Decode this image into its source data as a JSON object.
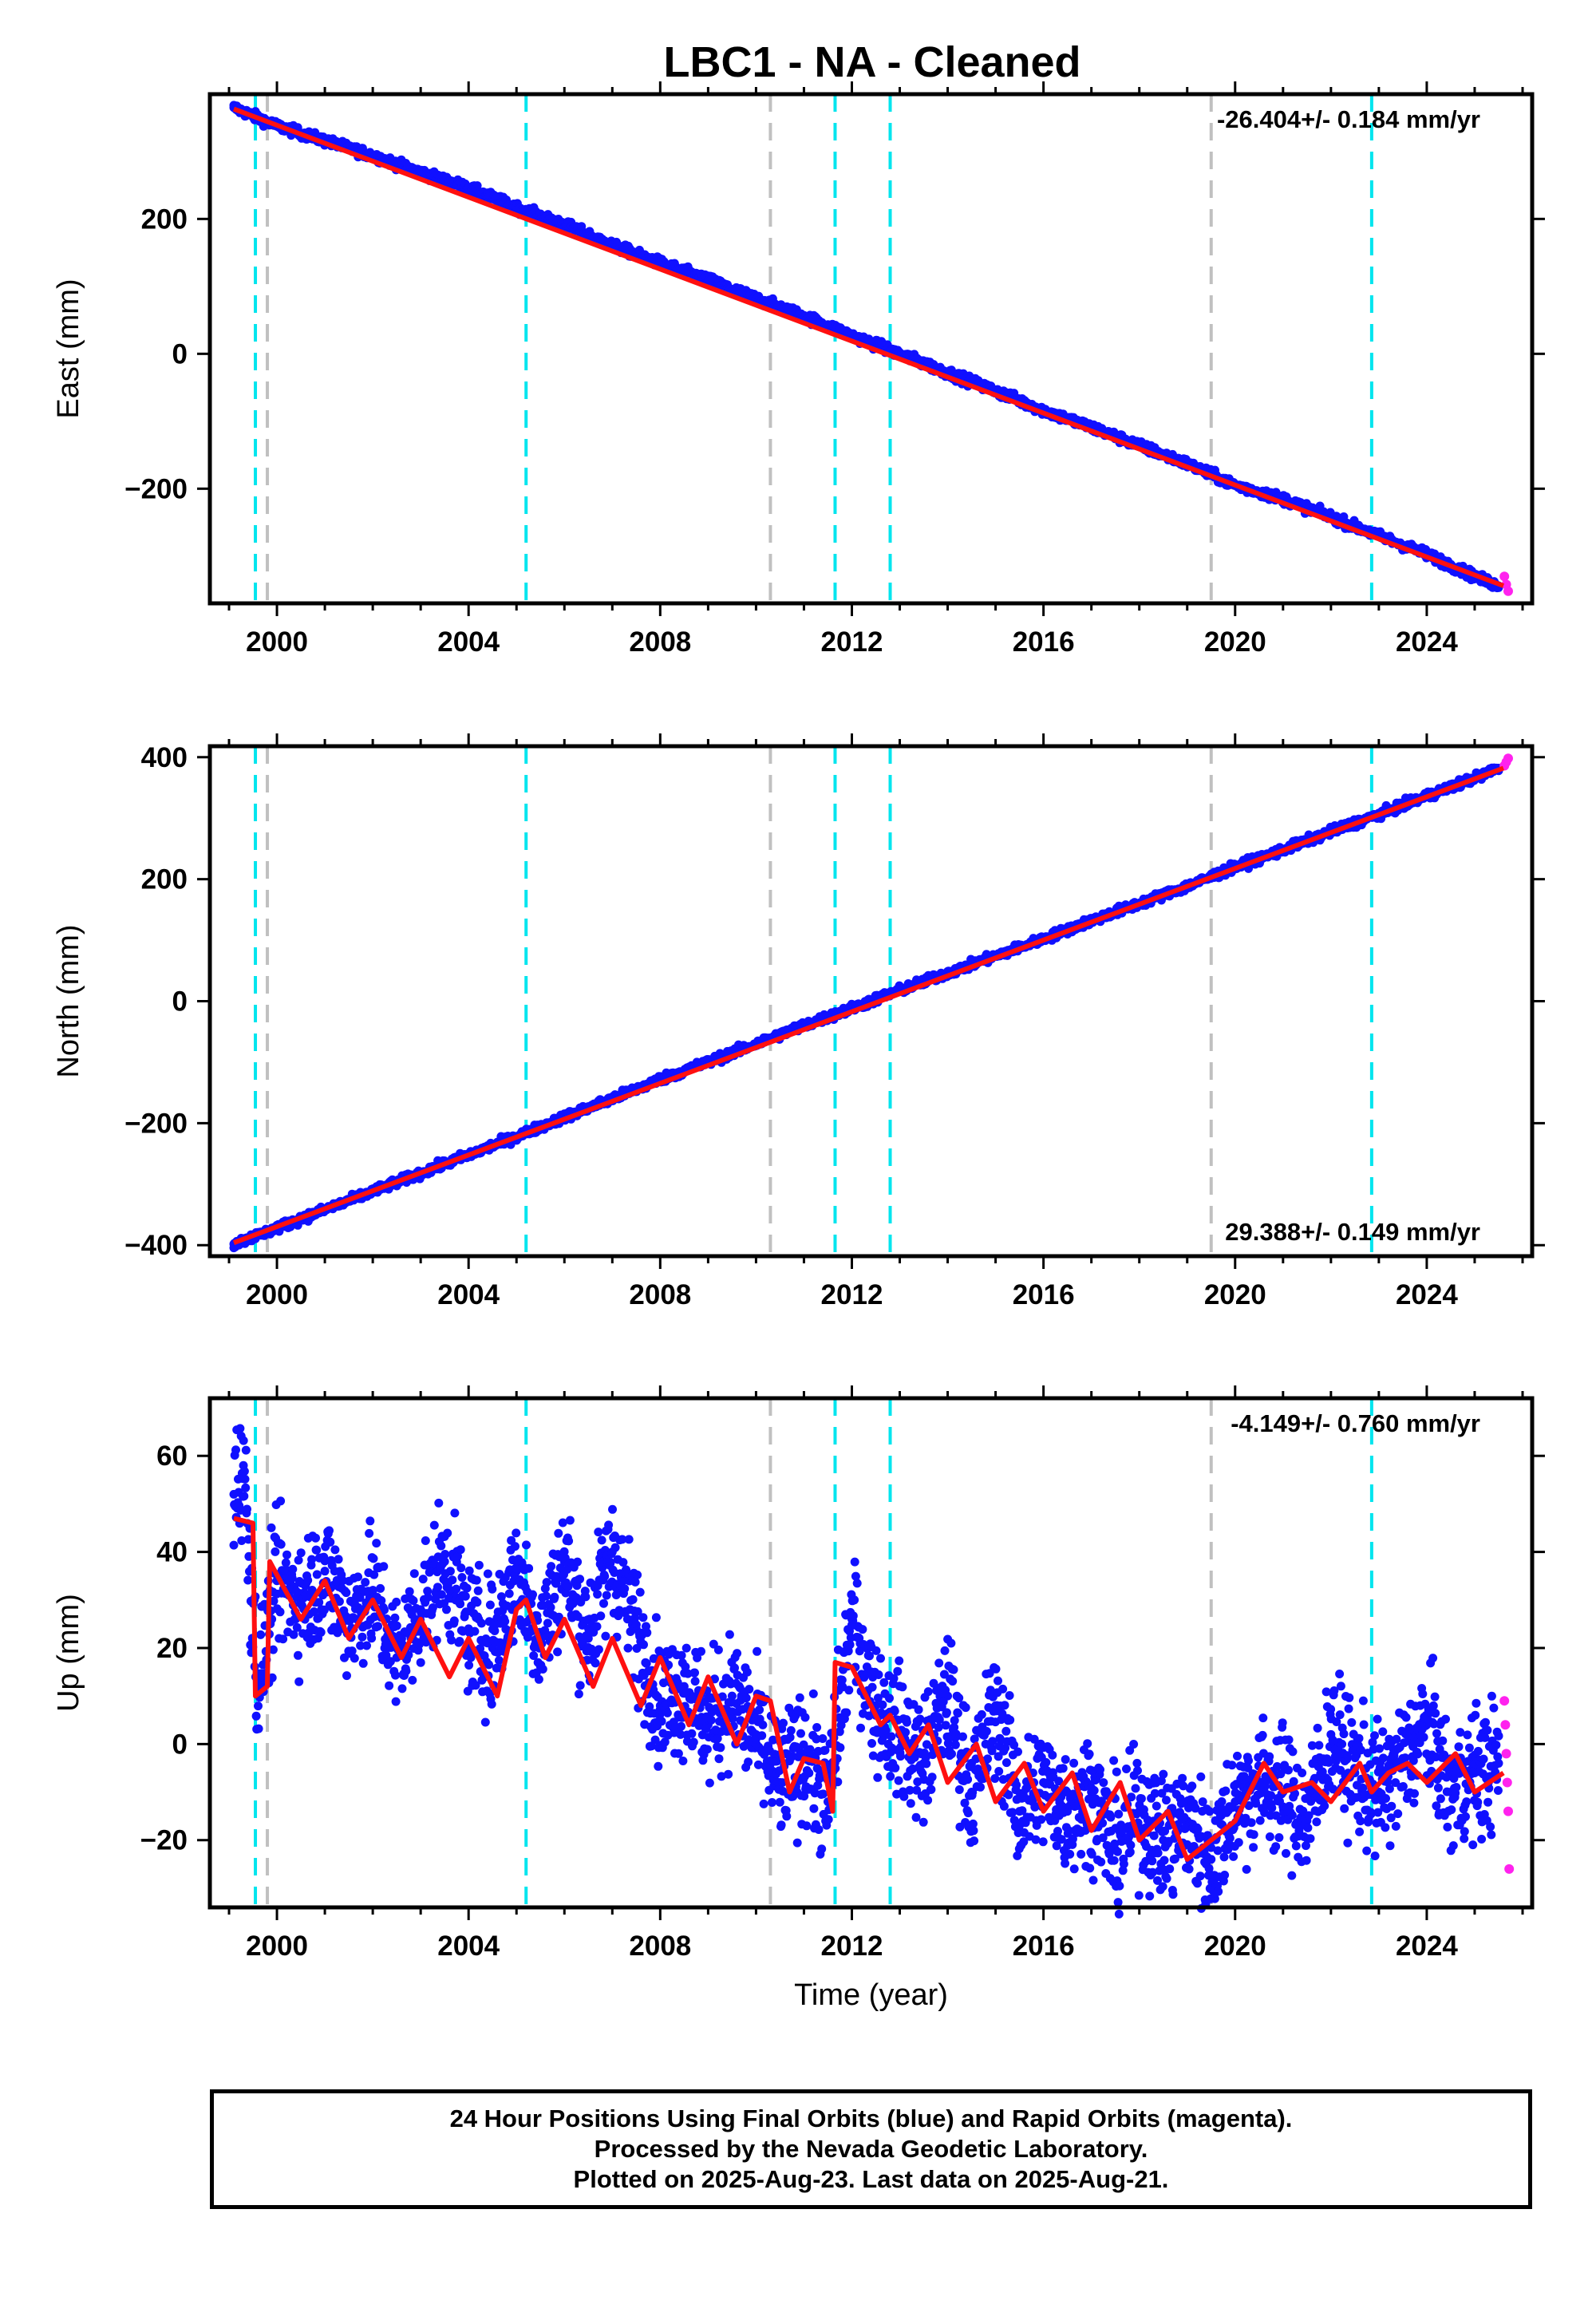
{
  "title": "LBC1  - NA - Cleaned",
  "colors": {
    "final_orbits": "#1010ff",
    "rapid_orbits": "#ff22ee",
    "model_fit": "#ff1010",
    "equipment_change": "#00e5ee",
    "offset_marker": "#c0c0c0",
    "frame": "#000000"
  },
  "chart_data": [
    {
      "type": "scatter",
      "panel": "east",
      "ylabel": "East (mm)",
      "xlabel": "",
      "xlim": [
        1998.6,
        2026.2
      ],
      "ylim": [
        -370,
        385
      ],
      "x_ticks": [
        2000,
        2004,
        2008,
        2012,
        2016,
        2020,
        2024
      ],
      "y_ticks": [
        -200,
        0,
        200
      ],
      "y_tick_labels": [
        "−200",
        "0",
        "200"
      ],
      "rate_label": "-26.404+/- 0.184 mm/yr",
      "rate_position": "top-right",
      "grid": false,
      "series": [
        {
          "name": "Final Orbits (blue)",
          "style": "points",
          "x": [
            1999.1,
            2000.0,
            2001.0,
            2002.0,
            2003.0,
            2004.0,
            2005.0,
            2006.0,
            2007.0,
            2008.0,
            2009.0,
            2010.0,
            2011.0,
            2012.0,
            2013.0,
            2014.0,
            2015.0,
            2016.0,
            2017.0,
            2018.0,
            2019.0,
            2020.0,
            2021.0,
            2022.0,
            2023.0,
            2024.0,
            2025.0,
            2025.5
          ],
          "y": [
            365,
            338,
            316,
            294,
            269,
            246,
            217,
            192,
            161,
            135,
            110,
            82,
            56,
            27,
            0,
            -28,
            -55,
            -84,
            -109,
            -136,
            -163,
            -195,
            -215,
            -242,
            -270,
            -297,
            -330,
            -344
          ]
        },
        {
          "name": "Rapid Orbits (magenta)",
          "style": "points",
          "x": [
            2025.62,
            2025.66,
            2025.7
          ],
          "y": [
            -330,
            -342,
            -352
          ]
        },
        {
          "name": "Model",
          "style": "line",
          "x": [
            1999.1,
            2025.6
          ],
          "y": [
            363,
            -344
          ]
        }
      ],
      "equipment_changes": [
        1999.55,
        2005.2,
        2011.65,
        2012.8,
        2022.85
      ],
      "other_offsets": [
        1999.8,
        2010.3,
        2019.5
      ]
    },
    {
      "type": "scatter",
      "panel": "north",
      "ylabel": "North (mm)",
      "xlabel": "",
      "xlim": [
        1998.6,
        2026.2
      ],
      "ylim": [
        -418,
        418
      ],
      "x_ticks": [
        2000,
        2004,
        2008,
        2012,
        2016,
        2020,
        2024
      ],
      "y_ticks": [
        -400,
        -200,
        0,
        200,
        400
      ],
      "y_tick_labels": [
        "−400",
        "−200",
        "0",
        "200",
        "400"
      ],
      "rate_label": "29.388+/- 0.149 mm/yr",
      "rate_position": "bottom-right",
      "grid": false,
      "series": [
        {
          "name": "Final Orbits (blue)",
          "style": "points",
          "x": [
            1999.1,
            2000.0,
            2001.0,
            2002.0,
            2003.0,
            2004.0,
            2005.0,
            2006.0,
            2007.0,
            2008.0,
            2009.0,
            2010.0,
            2011.0,
            2012.0,
            2013.0,
            2014.0,
            2015.0,
            2016.0,
            2017.0,
            2018.0,
            2019.0,
            2020.0,
            2021.0,
            2022.0,
            2023.0,
            2024.0,
            2025.0,
            2025.5
          ],
          "y": [
            -398,
            -372,
            -342,
            -312,
            -282,
            -252,
            -222,
            -190,
            -160,
            -128,
            -100,
            -70,
            -40,
            -12,
            18,
            46,
            74,
            102,
            132,
            160,
            188,
            220,
            248,
            278,
            306,
            336,
            366,
            382
          ]
        },
        {
          "name": "Rapid Orbits (magenta)",
          "style": "points",
          "x": [
            2025.62,
            2025.66,
            2025.7
          ],
          "y": [
            386,
            392,
            398
          ]
        },
        {
          "name": "Model",
          "style": "line",
          "x": [
            1999.1,
            2025.6
          ],
          "y": [
            -396,
            382
          ]
        }
      ],
      "equipment_changes": [
        1999.55,
        2005.2,
        2011.65,
        2012.8,
        2022.85
      ],
      "other_offsets": [
        1999.8,
        2010.3,
        2019.5
      ]
    },
    {
      "type": "scatter",
      "panel": "up",
      "ylabel": "Up (mm)",
      "xlabel": "Time (year)",
      "xlim": [
        1998.6,
        2026.2
      ],
      "ylim": [
        -34,
        72
      ],
      "x_ticks": [
        2000,
        2004,
        2008,
        2012,
        2016,
        2020,
        2024
      ],
      "y_ticks": [
        -20,
        0,
        20,
        40,
        60
      ],
      "y_tick_labels": [
        "−20",
        "0",
        "20",
        "40",
        "60"
      ],
      "rate_label": "-4.149+/- 0.760 mm/yr",
      "rate_position": "top-right",
      "grid": false,
      "series": [
        {
          "name": "Final Orbits (blue)",
          "style": "points",
          "x": [
            1999.1,
            1999.3,
            1999.6,
            2000.0,
            2000.5,
            2001.0,
            2001.5,
            2002.0,
            2002.5,
            2003.0,
            2003.5,
            2004.0,
            2004.5,
            2005.0,
            2005.5,
            2006.0,
            2006.5,
            2007.0,
            2007.5,
            2008.0,
            2008.5,
            2009.0,
            2009.5,
            2010.0,
            2010.5,
            2011.0,
            2011.5,
            2012.0,
            2012.5,
            2013.0,
            2013.5,
            2014.0,
            2014.5,
            2015.0,
            2015.5,
            2016.0,
            2016.5,
            2017.0,
            2017.5,
            2018.0,
            2018.5,
            2019.0,
            2019.5,
            2020.0,
            2020.5,
            2021.0,
            2021.5,
            2022.0,
            2022.5,
            2023.0,
            2023.5,
            2024.0,
            2024.5,
            2025.0,
            2025.5
          ],
          "y": [
            52,
            58,
            12,
            34,
            30,
            36,
            26,
            32,
            18,
            28,
            38,
            24,
            20,
            36,
            22,
            38,
            22,
            40,
            24,
            8,
            12,
            4,
            10,
            2,
            -8,
            -2,
            -12,
            26,
            8,
            2,
            -4,
            10,
            -10,
            8,
            -14,
            -8,
            -14,
            -10,
            -22,
            -14,
            -20,
            -16,
            -24,
            -12,
            -8,
            -10,
            -16,
            2,
            -6,
            -10,
            -4,
            4,
            -10,
            -6,
            -4
          ]
        },
        {
          "name": "Rapid Orbits (magenta)",
          "style": "points",
          "x": [
            2025.62,
            2025.64,
            2025.66,
            2025.68,
            2025.7,
            2025.72
          ],
          "y": [
            9,
            4,
            -2,
            -8,
            -14,
            -26
          ]
        },
        {
          "name": "Model",
          "style": "line",
          "x": [
            1999.1,
            1999.5,
            1999.55,
            1999.8,
            1999.85,
            2000.5,
            2001.0,
            2001.5,
            2002.0,
            2002.6,
            2003.0,
            2003.6,
            2004.0,
            2004.6,
            2005.0,
            2005.2,
            2005.6,
            2006.0,
            2006.6,
            2007.0,
            2007.6,
            2008.0,
            2008.6,
            2009.0,
            2009.6,
            2010.0,
            2010.3,
            2010.7,
            2011.0,
            2011.4,
            2011.6,
            2011.65,
            2012.0,
            2012.6,
            2012.8,
            2013.2,
            2013.6,
            2014.0,
            2014.6,
            2015.0,
            2015.6,
            2016.0,
            2016.6,
            2017.0,
            2017.6,
            2018.0,
            2018.6,
            2019.0,
            2019.5,
            2020.0,
            2020.6,
            2021.0,
            2021.6,
            2022.0,
            2022.6,
            2022.85,
            2023.2,
            2023.6,
            2024.0,
            2024.6,
            2025.0,
            2025.6
          ],
          "y": [
            47,
            46,
            10,
            12,
            38,
            26,
            34,
            22,
            30,
            18,
            26,
            14,
            22,
            10,
            28,
            30,
            18,
            26,
            12,
            22,
            8,
            18,
            4,
            14,
            0,
            10,
            9,
            -10,
            -3,
            -4,
            -14,
            17,
            16,
            4,
            6,
            -2,
            4,
            -8,
            0,
            -12,
            -4,
            -14,
            -6,
            -18,
            -8,
            -20,
            -14,
            -24,
            -20,
            -16,
            -4,
            -10,
            -8,
            -12,
            -4,
            -10,
            -6,
            -4,
            -8,
            -2,
            -10,
            -6
          ]
        }
      ],
      "equipment_changes": [
        1999.55,
        2005.2,
        2011.65,
        2012.8,
        2022.85
      ],
      "other_offsets": [
        1999.8,
        2010.3,
        2019.5
      ]
    }
  ],
  "footer": {
    "line1": "24 Hour Positions Using Final Orbits (blue) and Rapid Orbits (magenta).",
    "line2": "Processed by the Nevada Geodetic Laboratory.",
    "line3": "Plotted on 2025-Aug-23. Last data on 2025-Aug-21."
  }
}
